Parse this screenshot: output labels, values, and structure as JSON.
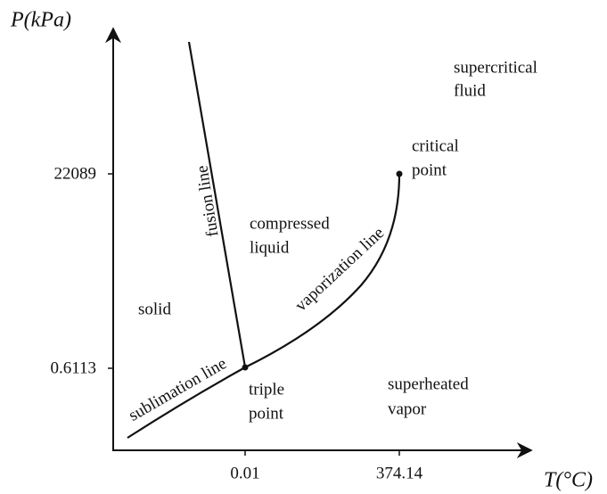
{
  "axes": {
    "y_label": "P(kPa)",
    "x_label": "T(°C)"
  },
  "y_ticks": [
    "22089",
    "0.6113"
  ],
  "x_ticks": [
    "0.01",
    "374.14"
  ],
  "lines": {
    "fusion": "fusion line",
    "sublimation": "sublimation line",
    "vaporization": "vaporization line"
  },
  "regions": {
    "supercritical": [
      "supercritical",
      "fluid"
    ],
    "critical": [
      "critical",
      "point"
    ],
    "liquid": [
      "compressed",
      "liquid"
    ],
    "solid": "solid",
    "triple": [
      "triple",
      "point"
    ],
    "vapor": [
      "superheated",
      "vapor"
    ]
  }
}
